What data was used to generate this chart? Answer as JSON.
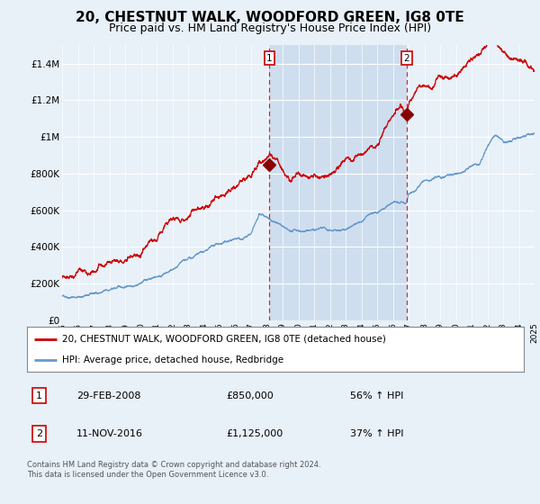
{
  "title": "20, CHESTNUT WALK, WOODFORD GREEN, IG8 0TE",
  "subtitle": "Price paid vs. HM Land Registry's House Price Index (HPI)",
  "title_fontsize": 11,
  "subtitle_fontsize": 9,
  "bg_color": "#e8f0f8",
  "plot_bg_color": "#e8f0f8",
  "line1_color": "#cc0000",
  "line2_color": "#6699cc",
  "shade_color": "#ccddef",
  "marker_color": "#880000",
  "vline_color": "#cc0000",
  "ylim": [
    0,
    1500000
  ],
  "yticks": [
    0,
    200000,
    400000,
    600000,
    800000,
    1000000,
    1200000,
    1400000
  ],
  "ytick_labels": [
    "£0",
    "£200K",
    "£400K",
    "£600K",
    "£800K",
    "£1M",
    "£1.2M",
    "£1.4M"
  ],
  "event1_x": 2008.17,
  "event1_y": 850000,
  "event1_label": "1",
  "event2_x": 2016.87,
  "event2_y": 1125000,
  "event2_label": "2",
  "legend_line1": "20, CHESTNUT WALK, WOODFORD GREEN, IG8 0TE (detached house)",
  "legend_line2": "HPI: Average price, detached house, Redbridge",
  "table_row1_num": "1",
  "table_row1_date": "29-FEB-2008",
  "table_row1_price": "£850,000",
  "table_row1_hpi": "56% ↑ HPI",
  "table_row2_num": "2",
  "table_row2_date": "11-NOV-2016",
  "table_row2_price": "£1,125,000",
  "table_row2_hpi": "37% ↑ HPI",
  "footer": "Contains HM Land Registry data © Crown copyright and database right 2024.\nThis data is licensed under the Open Government Licence v3.0.",
  "xmin": 1995,
  "xmax": 2025
}
